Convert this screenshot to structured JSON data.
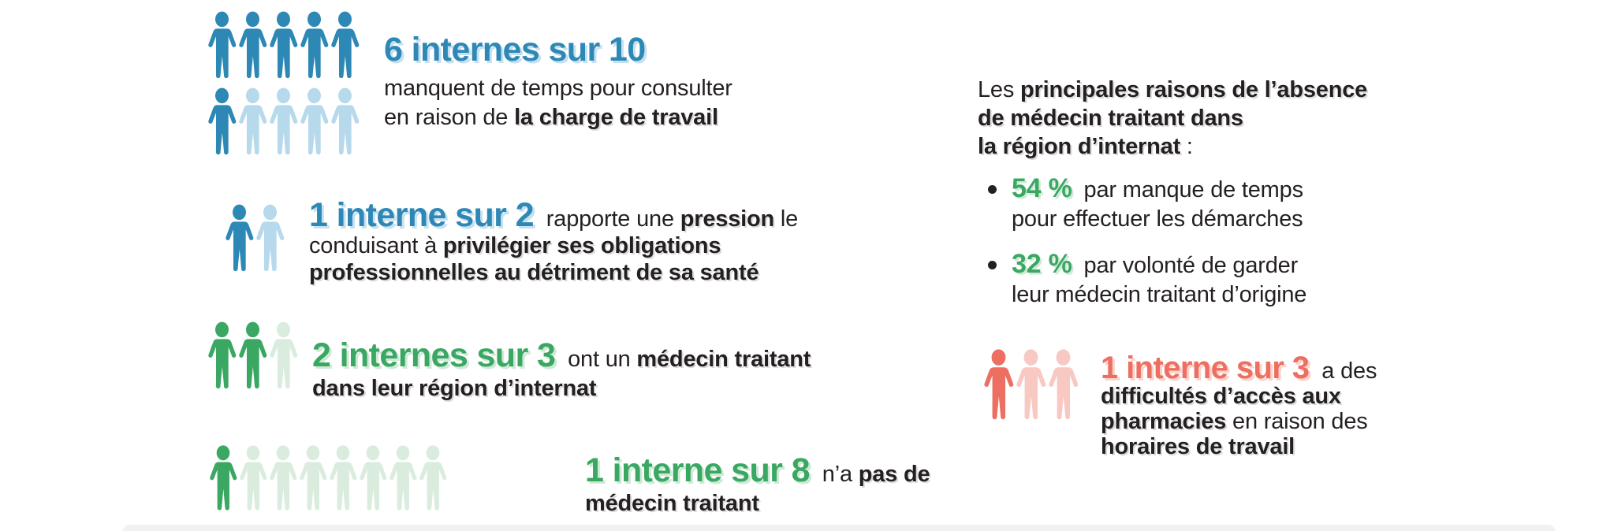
{
  "colors": {
    "blue": "#2e88b5",
    "blue_light": "#b6d9ec",
    "blue_shadow": "#c6e0f0",
    "green": "#3aa763",
    "green_light": "#d9ecdd",
    "green_shadow": "#d0e9d7",
    "red": "#ed6f62",
    "red_light": "#f8c9c3",
    "red_shadow": "#fad3cd",
    "text_dark": "#241f21",
    "divider": "#f1f1f3"
  },
  "stats": [
    {
      "id": "time-to-consult",
      "title": "6 internes sur 10",
      "icons": {
        "rows": [
          5,
          5
        ],
        "filled": 6,
        "fill": "blue",
        "muted": "blue_light"
      },
      "segments": [
        {
          "t": "manquent de temps pour consulter",
          "br": true
        },
        {
          "t": "en raison de "
        },
        {
          "t": "la charge de travail",
          "cls": "b"
        }
      ]
    },
    {
      "id": "pressure",
      "icons": {
        "rows": [
          2
        ],
        "filled": 1,
        "fill": "blue",
        "muted": "blue_light"
      },
      "segments": [
        {
          "t": "1 interne sur 2",
          "cls": "t tb"
        },
        {
          "t": " rapporte une "
        },
        {
          "t": "pression",
          "cls": "b"
        },
        {
          "t": " le",
          "br": true
        },
        {
          "t": "conduisant à "
        },
        {
          "t": "privilégier ses obligations",
          "cls": "b",
          "br": true
        },
        {
          "t": "professionnelles au détriment de sa santé",
          "cls": "b"
        }
      ]
    },
    {
      "id": "has-doctor",
      "icons": {
        "rows": [
          3
        ],
        "filled": 2,
        "fill": "green",
        "muted": "green_light"
      },
      "segments": [
        {
          "t": "2 internes sur 3",
          "cls": "t tg"
        },
        {
          "t": " ont un "
        },
        {
          "t": "médecin traitant",
          "cls": "b",
          "br": true
        },
        {
          "t": "dans leur région d’internat",
          "cls": "b"
        }
      ]
    },
    {
      "id": "no-doctor",
      "icons": {
        "rows": [
          8
        ],
        "filled": 1,
        "fill": "green",
        "muted": "green_light"
      },
      "segments": [
        {
          "t": "1 interne sur 8",
          "cls": "t tg"
        },
        {
          "t": " n’a "
        },
        {
          "t": "pas de",
          "cls": "b",
          "br": true
        },
        {
          "t": "médecin traitant",
          "cls": "b"
        }
      ]
    },
    {
      "id": "pharmacy-access",
      "icons": {
        "rows": [
          3
        ],
        "filled": 1,
        "fill": "red",
        "muted": "red_light"
      },
      "segments": [
        {
          "t": "1 interne sur 3",
          "cls": "t tr"
        },
        {
          "t": " a des",
          "br": true
        },
        {
          "t": "difficultés d’accès aux",
          "cls": "b",
          "br": true
        },
        {
          "t": "pharmacies",
          "cls": "b"
        },
        {
          "t": " en raison des",
          "br": true
        },
        {
          "t": "horaires de travail",
          "cls": "b"
        }
      ]
    }
  ],
  "reasons": {
    "header_segments": [
      {
        "t": "Les "
      },
      {
        "t": "principales raisons de l’absence",
        "cls": "b",
        "br": true
      },
      {
        "t": "de médecin traitant dans",
        "cls": "b",
        "br": true
      },
      {
        "t": "la région d’internat",
        "cls": "b"
      },
      {
        "t": " :"
      }
    ],
    "bullets": [
      {
        "segments": [
          {
            "t": "54 %",
            "cls": "pct"
          },
          {
            "t": " par manque de temps",
            "br": true
          },
          {
            "t": "pour effectuer les démarches"
          }
        ]
      },
      {
        "segments": [
          {
            "t": "32 %",
            "cls": "pct"
          },
          {
            "t": " par volonté de garder",
            "br": true
          },
          {
            "t": "leur médecin traitant d’origine"
          }
        ]
      }
    ]
  },
  "chart_data": {
    "type": "pictograph",
    "title": "Accès aux soins des internes",
    "series": [
      {
        "label": "6 internes sur 10",
        "value": 6,
        "total": 10,
        "color": "#2e88b5",
        "description": "manquent de temps pour consulter en raison de la charge de travail"
      },
      {
        "label": "1 interne sur 2",
        "value": 1,
        "total": 2,
        "color": "#2e88b5",
        "description": "rapporte une pression le conduisant à privilégier ses obligations professionnelles au détriment de sa santé"
      },
      {
        "label": "2 internes sur 3",
        "value": 2,
        "total": 3,
        "color": "#3aa763",
        "description": "ont un médecin traitant dans leur région d’internat"
      },
      {
        "label": "1 interne sur 8",
        "value": 1,
        "total": 8,
        "color": "#3aa763",
        "description": "n’a pas de médecin traitant"
      },
      {
        "label": "54 %",
        "value": 54,
        "unit": "%",
        "color": "#3aa763",
        "description": "par manque de temps pour effectuer les démarches"
      },
      {
        "label": "32 %",
        "value": 32,
        "unit": "%",
        "color": "#3aa763",
        "description": "par volonté de garder leur médecin traitant d’origine"
      },
      {
        "label": "1 interne sur 3",
        "value": 1,
        "total": 3,
        "color": "#ed6f62",
        "description": "a des difficultés d’accès aux pharmacies en raison des horaires de travail"
      }
    ],
    "legend_position": "none",
    "grid": false
  }
}
